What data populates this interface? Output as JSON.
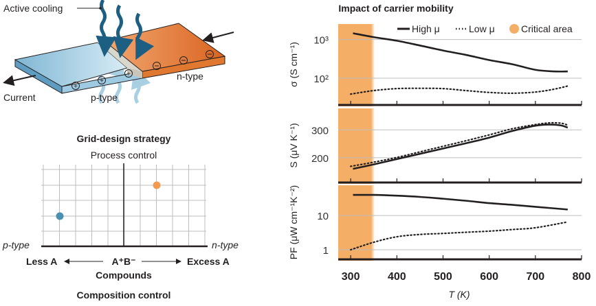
{
  "diagram": {
    "active_cooling_label": "Active cooling",
    "current_label": "Current",
    "p_type_label": "p-type",
    "n_type_label": "n-type",
    "colors": {
      "p_type": "#8cc3de",
      "n_type": "#e0782f",
      "junction": "#d9d6cc",
      "cooling_arrow": "#1d5f82",
      "heat_arrow": "#a9cfe3"
    }
  },
  "grid_design": {
    "title": "Grid-design strategy",
    "top_label": "Process control",
    "left_label": "p-type",
    "right_label": "n-type",
    "less_label": "Less A",
    "center_label": "A⁺B⁻",
    "excess_label": "Excess A",
    "compounds_label": "Compounds",
    "bottom_label": "Composition control",
    "points": [
      {
        "name": "p-type-point",
        "color": "#4a90b0"
      },
      {
        "name": "n-type-point",
        "color": "#f39a4e"
      }
    ]
  },
  "chart_data": {
    "type": "line",
    "title": "Impact of carrier mobility",
    "legend": {
      "high": "High μ",
      "low": "Low μ",
      "critical": "Critical area",
      "placement": "top-right"
    },
    "critical_color": "#f5ae66",
    "critical_range": [
      273,
      352
    ],
    "xlabel": "T (K)",
    "xlim": [
      273,
      800
    ],
    "xticks": [
      "300",
      "400",
      "500",
      "600",
      "700",
      "800"
    ],
    "xtick_values": [
      300,
      400,
      500,
      600,
      700,
      800
    ],
    "panels": [
      {
        "ylabel": "σ (S cm⁻¹)",
        "scale": "log",
        "ylim": [
          20.4,
          2512
        ],
        "ytick_values": [
          1000,
          100
        ],
        "yticks": [
          "10³",
          "10²"
        ],
        "series": [
          {
            "name": "High μ",
            "x": [
              305,
              350,
              400,
              450,
              500,
              550,
              600,
              650,
              700,
              740,
              770
            ],
            "y": [
              1450,
              1150,
              930,
              700,
              520,
              400,
              295,
              230,
              165,
              150,
              150
            ]
          },
          {
            "name": "Low μ",
            "x": [
              300,
              350,
              400,
              450,
              500,
              550,
              600,
              650,
              700,
              740,
              770
            ],
            "y": [
              39,
              48,
              54,
              55,
              54,
              48,
              43,
              41,
              44,
              52,
              63
            ]
          }
        ]
      },
      {
        "ylabel": "S (μV K⁻¹)",
        "scale": "linear",
        "ylim": [
          111,
          377
        ],
        "ytick_values": [
          300,
          200
        ],
        "yticks": [
          "300",
          "200"
        ],
        "series": [
          {
            "name": "High μ",
            "x": [
              305,
              350,
              400,
              450,
              500,
              550,
              600,
              650,
              700,
              730,
              755,
              770
            ],
            "y": [
              160,
              176,
              195,
              214,
              233,
              252,
              272,
              296,
              315,
              319,
              316,
              308
            ]
          },
          {
            "name": "Low μ",
            "x": [
              300,
              350,
              400,
              450,
              500,
              550,
              600,
              650,
              700,
              730,
              755,
              770
            ],
            "y": [
              169,
              184,
              201,
              221,
              241,
              261,
              282,
              304,
              319,
              325,
              324,
              317
            ]
          }
        ]
      },
      {
        "ylabel": "PF (μW cm⁻¹K⁻²)",
        "scale": "log",
        "ylim": [
          0.525,
          76.7
        ],
        "ytick_values": [
          10,
          1
        ],
        "yticks": [
          "10",
          "1"
        ],
        "series": [
          {
            "name": "High μ",
            "x": [
              305,
              350,
              400,
              450,
              500,
              550,
              600,
              650,
              700,
              770
            ],
            "y": [
              40,
              40,
              38,
              35,
              31,
              27,
              23,
              20.5,
              18,
              15
            ]
          },
          {
            "name": "Low μ",
            "x": [
              300,
              350,
              400,
              450,
              500,
              550,
              600,
              650,
              700,
              770
            ],
            "y": [
              1.0,
              1.66,
              2.4,
              2.8,
              3.0,
              3.25,
              3.5,
              3.9,
              4.4,
              6.5
            ]
          }
        ]
      }
    ]
  }
}
